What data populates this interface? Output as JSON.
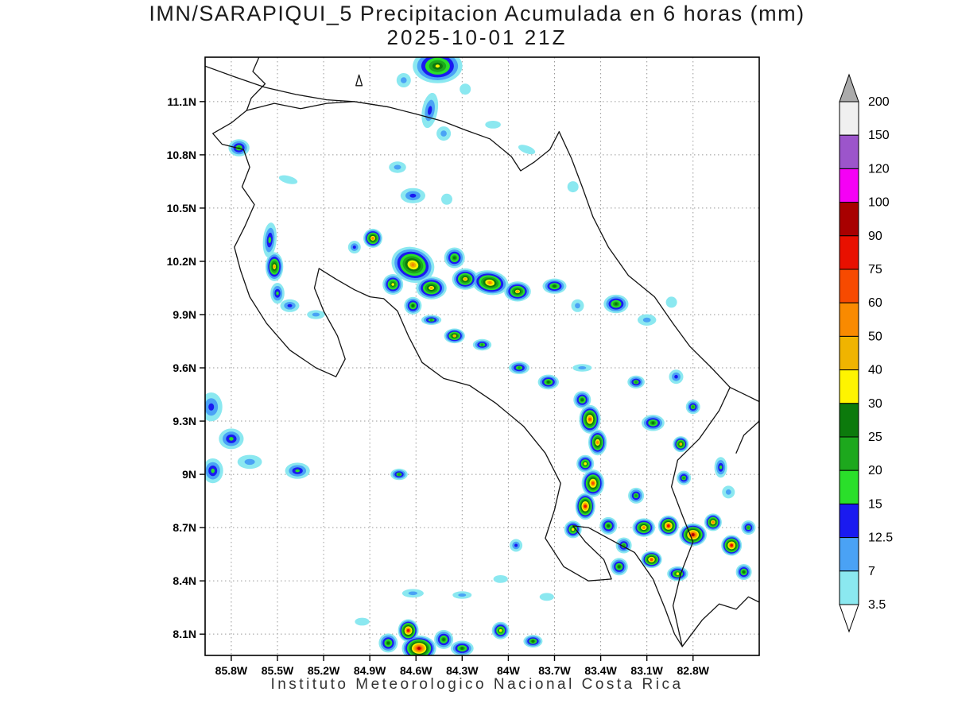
{
  "title": {
    "line1": "IMN/SARAPIQUI_5 Precipitacion Acumulada en 6 horas (mm)",
    "line2": "2025-10-01 21Z"
  },
  "footer": "Instituto Meteorologico Nacional Costa Rica",
  "map": {
    "lon_west_range": [
      85.97,
      82.37
    ],
    "lat_range": [
      7.98,
      11.35
    ],
    "grid_step_deg": 0.3,
    "lat_tick_labels": [
      "11.1N",
      "10.8N",
      "10.5N",
      "10.2N",
      "9.9N",
      "9.6N",
      "9.3N",
      "9N",
      "8.7N",
      "8.4N",
      "8.1N"
    ],
    "lat_tick_values": [
      11.1,
      10.8,
      10.5,
      10.2,
      9.9,
      9.6,
      9.3,
      9.0,
      8.7,
      8.4,
      8.1
    ],
    "lon_tick_labels": [
      "85.8W",
      "85.5W",
      "85.2W",
      "84.9W",
      "84.6W",
      "84.3W",
      "84W",
      "83.7W",
      "83.4W",
      "83.1W",
      "82.8W"
    ],
    "lon_tick_values": [
      85.8,
      85.5,
      85.2,
      84.9,
      84.6,
      84.3,
      84.0,
      83.7,
      83.4,
      83.1,
      82.8
    ],
    "coastlines": [
      [
        [
          85.62,
          11.35
        ],
        [
          85.66,
          11.27
        ],
        [
          85.58,
          11.2
        ],
        [
          85.67,
          11.12
        ],
        [
          85.7,
          11.05
        ]
      ],
      [
        [
          85.97,
          11.3
        ],
        [
          85.78,
          11.24
        ],
        [
          85.58,
          11.18
        ],
        [
          85.38,
          11.14
        ],
        [
          85.18,
          11.11
        ],
        [
          85.0,
          11.1
        ],
        [
          84.78,
          11.07
        ]
      ],
      [
        [
          85.7,
          11.05
        ],
        [
          85.52,
          11.09
        ],
        [
          85.35,
          11.06
        ],
        [
          85.18,
          11.09
        ],
        [
          85.0,
          11.1
        ],
        [
          84.78,
          11.07
        ],
        [
          84.6,
          11.03
        ],
        [
          84.43,
          10.99
        ],
        [
          84.28,
          10.94
        ],
        [
          84.12,
          10.89
        ],
        [
          83.98,
          10.79
        ],
        [
          83.92,
          10.71
        ],
        [
          83.83,
          10.76
        ],
        [
          83.73,
          10.83
        ],
        [
          83.67,
          10.93
        ]
      ],
      [
        [
          83.67,
          10.93
        ],
        [
          83.59,
          10.78
        ],
        [
          83.52,
          10.62
        ],
        [
          83.45,
          10.45
        ],
        [
          83.35,
          10.28
        ],
        [
          83.22,
          10.12
        ],
        [
          83.05,
          10.0
        ],
        [
          82.93,
          9.85
        ],
        [
          82.82,
          9.72
        ],
        [
          82.68,
          9.6
        ],
        [
          82.56,
          9.49
        ],
        [
          82.44,
          9.44
        ],
        [
          82.37,
          9.41
        ]
      ],
      [
        [
          85.7,
          11.05
        ],
        [
          85.8,
          10.98
        ],
        [
          85.92,
          10.92
        ],
        [
          85.86,
          10.86
        ],
        [
          85.72,
          10.83
        ],
        [
          85.68,
          10.73
        ],
        [
          85.73,
          10.62
        ],
        [
          85.65,
          10.52
        ],
        [
          85.71,
          10.4
        ],
        [
          85.78,
          10.28
        ],
        [
          85.74,
          10.15
        ],
        [
          85.68,
          10.0
        ],
        [
          85.57,
          9.85
        ],
        [
          85.42,
          9.7
        ],
        [
          85.25,
          9.6
        ],
        [
          85.12,
          9.55
        ],
        [
          85.06,
          9.65
        ],
        [
          85.11,
          9.78
        ],
        [
          85.2,
          9.92
        ],
        [
          85.26,
          10.05
        ],
        [
          85.23,
          10.16
        ],
        [
          85.12,
          10.1
        ],
        [
          85.0,
          10.04
        ],
        [
          84.9,
          10.0
        ],
        [
          84.81,
          9.99
        ],
        [
          84.72,
          9.92
        ],
        [
          84.65,
          9.78
        ],
        [
          84.56,
          9.63
        ],
        [
          84.42,
          9.54
        ],
        [
          84.25,
          9.5
        ],
        [
          84.08,
          9.4
        ],
        [
          83.9,
          9.27
        ],
        [
          83.76,
          9.12
        ],
        [
          83.66,
          8.95
        ],
        [
          83.7,
          8.8
        ],
        [
          83.76,
          8.64
        ],
        [
          83.64,
          8.48
        ],
        [
          83.48,
          8.4
        ],
        [
          83.33,
          8.41
        ],
        [
          83.38,
          8.52
        ],
        [
          83.5,
          8.62
        ],
        [
          83.58,
          8.71
        ],
        [
          83.48,
          8.7
        ],
        [
          83.33,
          8.63
        ],
        [
          83.18,
          8.56
        ],
        [
          83.06,
          8.41
        ],
        [
          82.98,
          8.24
        ],
        [
          82.92,
          8.1
        ],
        [
          82.87,
          8.03
        ]
      ],
      [
        [
          82.56,
          9.49
        ],
        [
          82.63,
          9.36
        ],
        [
          82.76,
          9.2
        ],
        [
          82.9,
          9.08
        ],
        [
          82.94,
          8.93
        ],
        [
          82.87,
          8.77
        ],
        [
          82.8,
          8.62
        ],
        [
          82.88,
          8.44
        ],
        [
          82.93,
          8.26
        ],
        [
          82.87,
          8.03
        ]
      ],
      [
        [
          82.87,
          8.03
        ],
        [
          82.74,
          8.18
        ],
        [
          82.63,
          8.27
        ],
        [
          82.52,
          8.24
        ],
        [
          82.44,
          8.31
        ],
        [
          82.37,
          8.28
        ]
      ],
      [
        [
          82.37,
          9.3
        ],
        [
          82.47,
          9.22
        ],
        [
          82.52,
          9.12
        ]
      ],
      [
        [
          84.99,
          11.19
        ],
        [
          84.95,
          11.19
        ],
        [
          84.97,
          11.25
        ],
        [
          84.99,
          11.19
        ]
      ]
    ]
  },
  "colorbar": {
    "tick_labels": [
      "200",
      "150",
      "120",
      "100",
      "90",
      "75",
      "60",
      "50",
      "40",
      "30",
      "25",
      "20",
      "15",
      "12.5",
      "7",
      "3.5"
    ],
    "segment_colors_top_to_bottom": [
      "#F0F0F0",
      "#9C55CB",
      "#F500F5",
      "#A80000",
      "#E81000",
      "#F74A00",
      "#F98A00",
      "#F0B400",
      "#FEF400",
      "#0C7A0C",
      "#1DA81D",
      "#2ADF2A",
      "#1A1AF0",
      "#4AA2F5",
      "#8BE8F0"
    ],
    "top_arrow_color": "#ABABAB",
    "bottom_arrow_color": "#FFFFFF"
  },
  "chart_data": {
    "type": "heatmap",
    "title": "IMN/SARAPIQUI_5 Precipitacion Acumulada en 6 horas (mm)",
    "subtitle": "2025-10-01 21Z",
    "units": "mm",
    "levels": [
      3.5,
      7,
      12.5,
      15,
      20,
      25,
      30,
      40,
      50,
      60,
      75,
      90,
      100,
      120,
      150,
      200
    ],
    "interval_colors": [
      "#8BE8F0",
      "#4AA2F5",
      "#1A1AF0",
      "#2ADF2A",
      "#1DA81D",
      "#0C7A0C",
      "#FEF400",
      "#F0B400",
      "#F98A00",
      "#F74A00",
      "#E81000",
      "#A80000",
      "#F500F5",
      "#9C55CB",
      "#F0F0F0"
    ],
    "cells_format": "[lon_deg_west, lat_deg_north, peak_mm, radius_px, stretch_x, stretch_y, rotation_deg]",
    "cells": [
      [
        84.46,
        11.3,
        30,
        24,
        1.3,
        0.9,
        0
      ],
      [
        84.51,
        11.05,
        12.5,
        14,
        0.7,
        1.6,
        10
      ],
      [
        84.42,
        10.92,
        7,
        9,
        1,
        1,
        0
      ],
      [
        84.68,
        11.22,
        7,
        9,
        1,
        1,
        0
      ],
      [
        84.28,
        11.17,
        3.5,
        7,
        1,
        1,
        0
      ],
      [
        84.1,
        10.97,
        3.5,
        7,
        1.4,
        0.7,
        0
      ],
      [
        83.88,
        10.83,
        3.5,
        8,
        1.4,
        0.6,
        20
      ],
      [
        84.72,
        10.73,
        7,
        9,
        1.2,
        0.8,
        0
      ],
      [
        85.75,
        10.84,
        20,
        12,
        1.1,
        0.9,
        0
      ],
      [
        85.43,
        10.66,
        3.5,
        8,
        1.5,
        0.6,
        15
      ],
      [
        84.62,
        10.57,
        12.5,
        12,
        1.3,
        0.8,
        0
      ],
      [
        84.4,
        10.55,
        3.5,
        7,
        1,
        1,
        0
      ],
      [
        83.58,
        10.62,
        3.5,
        7,
        1,
        1,
        0
      ],
      [
        85.55,
        10.32,
        15,
        13,
        0.65,
        1.7,
        5
      ],
      [
        85.52,
        10.17,
        40,
        14,
        0.8,
        1.3,
        0
      ],
      [
        85.5,
        10.02,
        15,
        11,
        0.8,
        1.2,
        0
      ],
      [
        85.42,
        9.95,
        12.5,
        10,
        1.2,
        0.8,
        0
      ],
      [
        85.25,
        9.9,
        7,
        8,
        1.4,
        0.7,
        0
      ],
      [
        85.0,
        10.28,
        12.5,
        8,
        1,
        1,
        0
      ],
      [
        84.88,
        10.33,
        50,
        12,
        1,
        1,
        0
      ],
      [
        84.62,
        10.18,
        50,
        22,
        1.25,
        1,
        20
      ],
      [
        84.75,
        10.07,
        30,
        13,
        1,
        1,
        0
      ],
      [
        84.5,
        10.05,
        40,
        16,
        1.2,
        0.9,
        0
      ],
      [
        84.62,
        9.95,
        25,
        11,
        1,
        1,
        0
      ],
      [
        84.35,
        10.22,
        25,
        13,
        1,
        1,
        0
      ],
      [
        84.28,
        10.1,
        40,
        15,
        1.1,
        0.9,
        0
      ],
      [
        84.12,
        10.08,
        50,
        18,
        1.3,
        0.85,
        10
      ],
      [
        83.94,
        10.03,
        40,
        14,
        1.2,
        0.9,
        0
      ],
      [
        83.7,
        10.06,
        25,
        12,
        1.25,
        0.8,
        0
      ],
      [
        84.5,
        9.87,
        20,
        9,
        1.4,
        0.7,
        0
      ],
      [
        84.35,
        9.78,
        40,
        11,
        1.2,
        0.85,
        0
      ],
      [
        84.17,
        9.73,
        20,
        9,
        1.3,
        0.8,
        0
      ],
      [
        83.55,
        9.95,
        7,
        8,
        1,
        1,
        0
      ],
      [
        83.3,
        9.96,
        25,
        13,
        1.2,
        0.9,
        0
      ],
      [
        83.1,
        9.87,
        7,
        9,
        1.3,
        0.8,
        0
      ],
      [
        82.94,
        9.97,
        3.5,
        7,
        1,
        1,
        0
      ],
      [
        83.93,
        9.6,
        20,
        10,
        1.3,
        0.8,
        0
      ],
      [
        83.74,
        9.52,
        25,
        11,
        1.2,
        0.85,
        0
      ],
      [
        83.52,
        9.6,
        7,
        8,
        1.5,
        0.6,
        0
      ],
      [
        83.17,
        9.52,
        20,
        9,
        1.2,
        0.9,
        0
      ],
      [
        82.91,
        9.55,
        12.5,
        9,
        1,
        1,
        0
      ],
      [
        82.8,
        9.38,
        20,
        9,
        1,
        1,
        0
      ],
      [
        83.52,
        9.42,
        25,
        11,
        1,
        1,
        0
      ],
      [
        83.47,
        9.31,
        60,
        15,
        0.9,
        1.2,
        0
      ],
      [
        83.42,
        9.18,
        50,
        13,
        0.9,
        1.25,
        0
      ],
      [
        83.5,
        9.06,
        30,
        11,
        1,
        1,
        0
      ],
      [
        83.06,
        9.29,
        25,
        12,
        1.2,
        0.85,
        0
      ],
      [
        82.88,
        9.17,
        40,
        10,
        1,
        1,
        0
      ],
      [
        85.93,
        9.38,
        12.5,
        14,
        1,
        1.3,
        0
      ],
      [
        85.8,
        9.2,
        15,
        13,
        1.2,
        1,
        0
      ],
      [
        85.92,
        9.02,
        15,
        13,
        1,
        1.2,
        0
      ],
      [
        85.68,
        9.07,
        7,
        11,
        1.4,
        0.8,
        0
      ],
      [
        85.37,
        9.02,
        15,
        12,
        1.3,
        0.85,
        0
      ],
      [
        84.71,
        9.0,
        20,
        9,
        1.2,
        0.8,
        0
      ],
      [
        83.45,
        8.95,
        60,
        15,
        0.95,
        1.15,
        0
      ],
      [
        83.5,
        8.82,
        75,
        14,
        0.9,
        1.2,
        0
      ],
      [
        83.58,
        8.69,
        30,
        11,
        1,
        1,
        0
      ],
      [
        83.35,
        8.71,
        25,
        11,
        1,
        1,
        0
      ],
      [
        83.17,
        8.88,
        20,
        10,
        1,
        1,
        0
      ],
      [
        82.86,
        8.98,
        20,
        9,
        1,
        1,
        0
      ],
      [
        82.62,
        9.04,
        15,
        10,
        0.8,
        1.3,
        0
      ],
      [
        82.57,
        8.9,
        7,
        8,
        1,
        1,
        0
      ],
      [
        83.12,
        8.7,
        50,
        13,
        1.1,
        0.9,
        0
      ],
      [
        82.96,
        8.71,
        75,
        13,
        1,
        1,
        0
      ],
      [
        82.8,
        8.66,
        90,
        15,
        1.15,
        0.95,
        0
      ],
      [
        82.67,
        8.73,
        50,
        11,
        1,
        1,
        0
      ],
      [
        82.55,
        8.6,
        75,
        13,
        1,
        1,
        10
      ],
      [
        83.07,
        8.52,
        60,
        12,
        1.1,
        0.9,
        0
      ],
      [
        82.9,
        8.44,
        30,
        11,
        1.2,
        0.85,
        0
      ],
      [
        83.28,
        8.48,
        25,
        11,
        1,
        1,
        0
      ],
      [
        83.25,
        8.6,
        20,
        10,
        1,
        1,
        0
      ],
      [
        82.44,
        8.7,
        20,
        9,
        1,
        1,
        0
      ],
      [
        82.47,
        8.45,
        25,
        10,
        1,
        1,
        0
      ],
      [
        84.65,
        8.12,
        75,
        13,
        1,
        1.1,
        0
      ],
      [
        84.58,
        8.02,
        90,
        18,
        1.2,
        0.9,
        0
      ],
      [
        84.78,
        8.05,
        25,
        12,
        1,
        1,
        0
      ],
      [
        84.42,
        8.07,
        25,
        12,
        1,
        1,
        0
      ],
      [
        84.3,
        8.02,
        25,
        12,
        1.2,
        0.8,
        0
      ],
      [
        84.05,
        8.12,
        30,
        11,
        1,
        1,
        0
      ],
      [
        83.84,
        8.06,
        25,
        10,
        1.2,
        0.8,
        0
      ],
      [
        84.95,
        8.17,
        3.5,
        7,
        1.3,
        0.7,
        0
      ],
      [
        84.62,
        8.33,
        7,
        9,
        1.5,
        0.6,
        0
      ],
      [
        84.3,
        8.32,
        7,
        8,
        1.5,
        0.6,
        0
      ],
      [
        84.05,
        8.41,
        3.5,
        7,
        1.3,
        0.7,
        0
      ],
      [
        83.75,
        8.31,
        3.5,
        7,
        1.3,
        0.7,
        0
      ],
      [
        83.95,
        8.6,
        12.5,
        8,
        1,
        1,
        0
      ]
    ]
  }
}
